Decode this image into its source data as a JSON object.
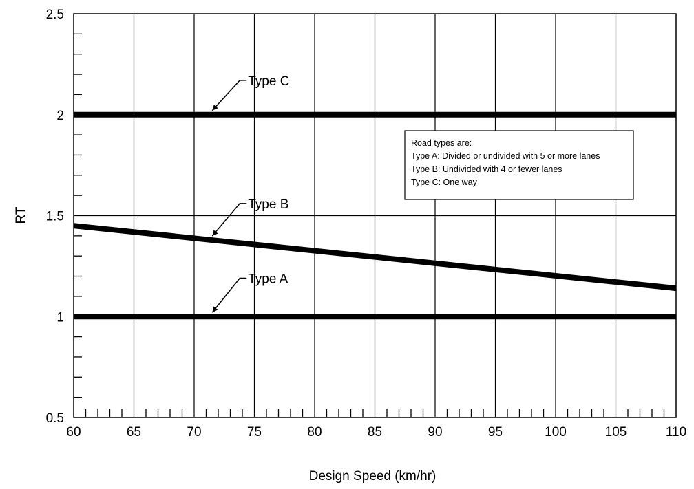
{
  "chart_data": {
    "type": "line",
    "xlabel": "Design Speed (km/hr)",
    "ylabel": "RT",
    "xlim": [
      60,
      110
    ],
    "ylim": [
      0.5,
      2.5
    ],
    "x_ticks": [
      60,
      65,
      70,
      75,
      80,
      85,
      90,
      95,
      100,
      105,
      110
    ],
    "y_ticks": [
      0.5,
      1,
      1.5,
      2,
      2.5
    ],
    "y_tick_labels": [
      "0.5",
      "1",
      "1.5",
      "2",
      "2.5"
    ],
    "grid": true,
    "series": [
      {
        "name": "Type A",
        "x": [
          60,
          110
        ],
        "y": [
          1.0,
          1.0
        ],
        "label_at_x": 71.5,
        "label_y": 1.19
      },
      {
        "name": "Type B",
        "x": [
          60,
          110
        ],
        "y": [
          1.45,
          1.14
        ],
        "label_at_x": 71.5,
        "label_y": 1.56
      },
      {
        "name": "Type C",
        "x": [
          60,
          110
        ],
        "y": [
          2.0,
          2.0
        ],
        "label_at_x": 71.5,
        "label_y": 2.17
      }
    ],
    "annotation": {
      "lines": [
        "Road types are:",
        "Type A: Divided or undivided with 5 or more lanes",
        "Type B: Undivided with 4 or fewer lanes",
        "Type C: One way"
      ]
    },
    "line_color": "#000000"
  }
}
